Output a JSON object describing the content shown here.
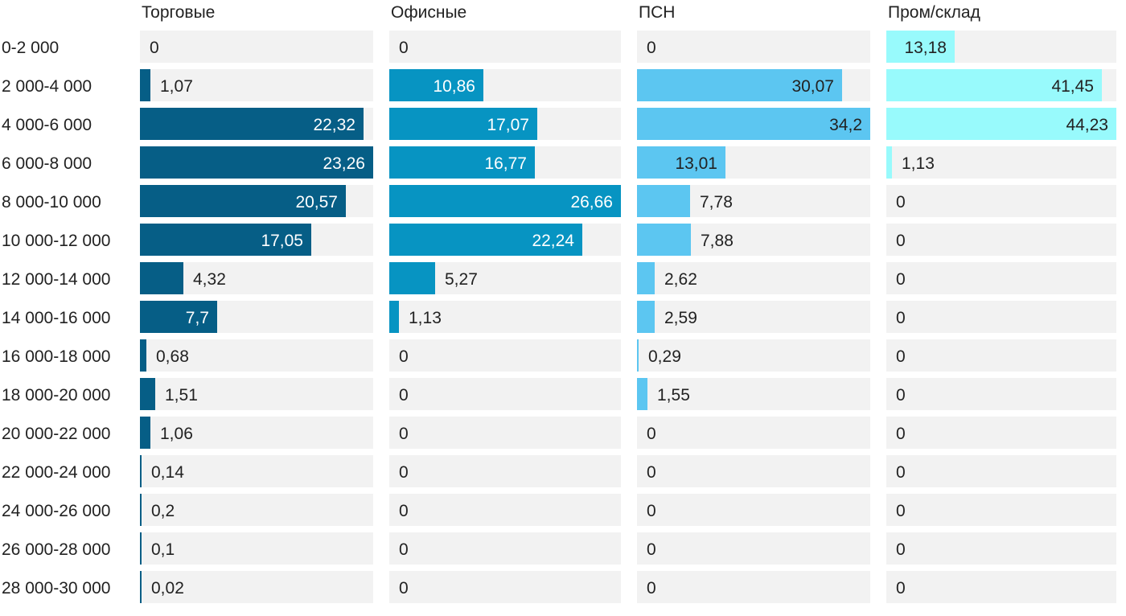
{
  "chart_data": {
    "type": "bar",
    "orientation": "horizontal",
    "layout": "small-multiples",
    "categories": [
      "0-2 000",
      "2 000-4 000",
      "4 000-6 000",
      "6 000-8 000",
      "8 000-10 000",
      "10 000-12 000",
      "12 000-14 000",
      "14 000-16 000",
      "16 000-18 000",
      "18 000-20 000",
      "20 000-22 000",
      "22 000-24 000",
      "24 000-26 000",
      "26 000-28 000",
      "28 000-30 000"
    ],
    "value_labels": [
      [
        "0",
        "1,07",
        "22,32",
        "23,26",
        "20,57",
        "17,05",
        "4,32",
        "7,7",
        "0,68",
        "1,51",
        "1,06",
        "0,14",
        "0,2",
        "0,1",
        "0,02"
      ],
      [
        "0",
        "10,86",
        "17,07",
        "16,77",
        "26,66",
        "22,24",
        "5,27",
        "1,13",
        "0",
        "0",
        "0",
        "0",
        "0",
        "0",
        "0"
      ],
      [
        "0",
        "30,07",
        "34,2",
        "13,01",
        "7,78",
        "7,88",
        "2,62",
        "2,59",
        "0,29",
        "1,55",
        "0",
        "0",
        "0",
        "0",
        "0"
      ],
      [
        "13,18",
        "41,45",
        "44,23",
        "1,13",
        "0",
        "0",
        "0",
        "0",
        "0",
        "0",
        "0",
        "0",
        "0",
        "0",
        "0"
      ]
    ],
    "series": [
      {
        "name": "Торговые",
        "color": "#065e86",
        "label_inside_color": "#ffffff",
        "values": [
          0,
          1.07,
          22.32,
          23.26,
          20.57,
          17.05,
          4.32,
          7.7,
          0.68,
          1.51,
          1.06,
          0.14,
          0.2,
          0.1,
          0.02
        ]
      },
      {
        "name": "Офисные",
        "color": "#0794c2",
        "label_inside_color": "#ffffff",
        "values": [
          0,
          10.86,
          17.07,
          16.77,
          26.66,
          22.24,
          5.27,
          1.13,
          0,
          0,
          0,
          0,
          0,
          0,
          0
        ]
      },
      {
        "name": "ПСН",
        "color": "#5cc6f1",
        "label_inside_color": "#222222",
        "values": [
          0,
          30.07,
          34.2,
          13.01,
          7.78,
          7.88,
          2.62,
          2.59,
          0.29,
          1.55,
          0,
          0,
          0,
          0,
          0
        ]
      },
      {
        "name": "Пром/склад",
        "color": "#98fafc",
        "label_inside_color": "#222222",
        "values": [
          13.18,
          41.45,
          44.23,
          1.13,
          0,
          0,
          0,
          0,
          0,
          0,
          0,
          0,
          0,
          0,
          0
        ]
      }
    ],
    "background_color": "#f2f2f2",
    "label_outside_color": "#222222",
    "grid": false,
    "legend": "none"
  }
}
